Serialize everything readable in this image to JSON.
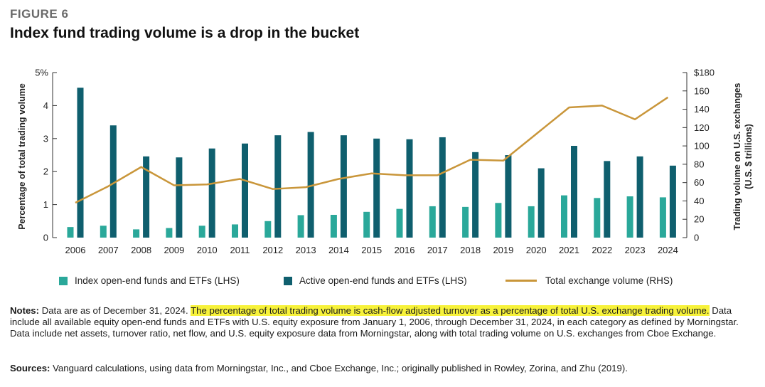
{
  "figure_label": "FIGURE 6",
  "title": "Index fund trading volume is a drop in the bucket",
  "colors": {
    "index": "#2aa89a",
    "active": "#0f5f6e",
    "line": "#c9963a",
    "axis": "#333333",
    "highlight": "#f7f23a"
  },
  "chart_data": {
    "type": "bar",
    "title": "Index fund trading volume is a drop in the bucket",
    "categories": [
      "2006",
      "2007",
      "2008",
      "2009",
      "2010",
      "2011",
      "2012",
      "2013",
      "2014",
      "2015",
      "2016",
      "2017",
      "2018",
      "2019",
      "2020",
      "2021",
      "2022",
      "2023",
      "2024"
    ],
    "series": [
      {
        "name": "Index open-end funds and ETFs (LHS)",
        "axis": "left",
        "type": "bar",
        "values": [
          0.32,
          0.36,
          0.25,
          0.29,
          0.36,
          0.4,
          0.5,
          0.68,
          0.69,
          0.78,
          0.87,
          0.95,
          0.93,
          1.05,
          0.95,
          1.28,
          1.2,
          1.25,
          1.22
        ]
      },
      {
        "name": "Active open-end funds and ETFs (LHS)",
        "axis": "left",
        "type": "bar",
        "values": [
          4.54,
          3.4,
          2.46,
          2.43,
          2.7,
          2.85,
          3.1,
          3.2,
          3.1,
          3.0,
          2.98,
          3.04,
          2.59,
          2.5,
          2.1,
          2.78,
          2.32,
          2.46,
          2.18
        ]
      },
      {
        "name": "Total exchange volume (RHS)",
        "axis": "right",
        "type": "line",
        "values": [
          38,
          56,
          77,
          57,
          58,
          64,
          53,
          55,
          64,
          70,
          68,
          68,
          85,
          84,
          113,
          142,
          144,
          129,
          153
        ]
      }
    ],
    "ylabel": "Percentage of total trading volume",
    "y2label": "Trading volume on U.S. exchanges (U.S. $ trillions)",
    "ylim": [
      0,
      5
    ],
    "y2lim": [
      0,
      180
    ],
    "yticks": [
      "0",
      "1",
      "2",
      "3",
      "4",
      "5%"
    ],
    "y2ticks": [
      "0",
      "20",
      "40",
      "60",
      "80",
      "100",
      "120",
      "140",
      "160",
      "$180"
    ],
    "legend_position": "bottom"
  },
  "legend": [
    {
      "label": "Index open-end funds and ETFs (LHS)"
    },
    {
      "label": "Active open-end funds and ETFs (LHS)"
    },
    {
      "label": "Total exchange volume (RHS)"
    }
  ],
  "notes": {
    "label": "Notes:",
    "text1": " Data are as of December 31, 2024. ",
    "highlighted": "The percentage of total trading volume is cash-flow adjusted turnover as a percentage of total U.S. exchange trading volume.",
    "text2": " Data include all available equity open-end funds and ETFs with U.S. equity exposure from January 1, 2006, through December 31, 2024, in each category as defined by Morningstar. Data include net assets, turnover ratio, net flow, and U.S. equity exposure data from Morningstar, along with total trading volume on U.S. exchanges from Cboe Exchange."
  },
  "sources": {
    "label": "Sources:",
    "text": " Vanguard calculations, using data from Morningstar, Inc., and Cboe Exchange, Inc.; originally published in Rowley, Zorina, and Zhu (2019)."
  }
}
